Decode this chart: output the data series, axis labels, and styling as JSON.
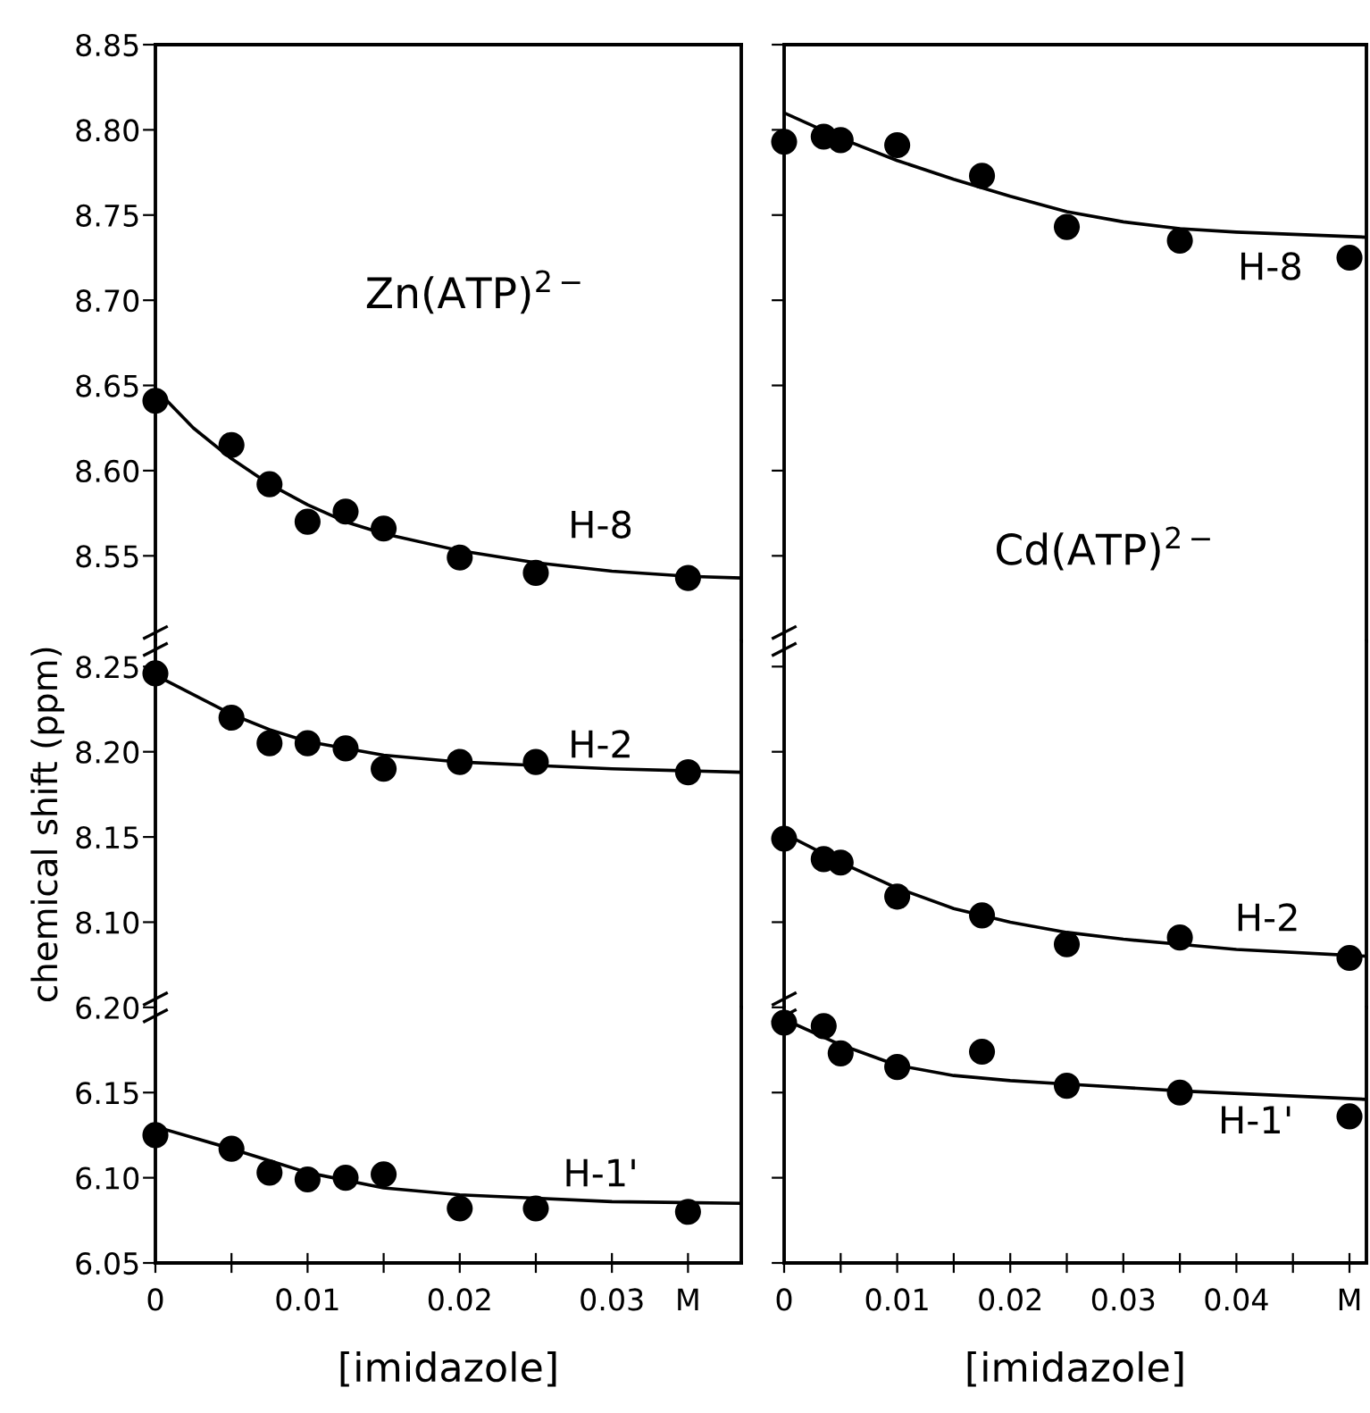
{
  "chart_data": [
    {
      "type": "scatter",
      "grid": false,
      "legend": false,
      "tick_labels": "y",
      "xlim": [
        0,
        0.0385
      ],
      "ylim": [
        8.5,
        8.85
      ],
      "yticks": [
        8.55,
        {
          "value": 8.6,
          "label": "8.60"
        },
        8.65,
        {
          "value": 8.7,
          "label": "8.70"
        },
        8.75,
        {
          "value": 8.8,
          "label": "8.80"
        },
        8.85
      ],
      "annotations": [
        "Zn(ATP)$^{2−}$",
        "H-8"
      ],
      "series": [
        {
          "marker": "circle",
          "color": "#000000",
          "x": [
            0,
            0.005,
            0.0075,
            0.01,
            0.0125,
            0.015,
            0.02,
            0.025,
            0.035
          ],
          "values": [
            8.641,
            8.615,
            8.592,
            8.57,
            8.576,
            8.566,
            8.549,
            8.54,
            8.537
          ]
        },
        {
          "type": "line",
          "color": "#000000",
          "x": [
            0,
            0.0025,
            0.005,
            0.0075,
            0.01,
            0.0125,
            0.015,
            0.02,
            0.025,
            0.03,
            0.035,
            0.0385
          ],
          "values": [
            8.648,
            8.625,
            8.607,
            8.592,
            8.58,
            8.57,
            8.563,
            8.553,
            8.546,
            8.541,
            8.538,
            8.537
          ]
        }
      ]
    },
    {
      "type": "scatter",
      "grid": false,
      "legend": false,
      "tick_labels": false,
      "xlim": [
        0,
        0.0515
      ],
      "ylim": [
        8.5,
        8.85
      ],
      "yticks": [
        8.55,
        8.6,
        8.65,
        8.7,
        8.75,
        8.8,
        8.85
      ],
      "annotations": [
        "Cd(ATP)$^{2−}$",
        "H-8"
      ],
      "series": [
        {
          "marker": "circle",
          "color": "#000000",
          "x": [
            0,
            0.0035,
            0.005,
            0.01,
            0.0175,
            0.025,
            0.035,
            0.05
          ],
          "values": [
            8.793,
            8.796,
            8.794,
            8.791,
            8.773,
            8.743,
            8.735,
            8.725
          ]
        },
        {
          "type": "line",
          "color": "#000000",
          "x": [
            0,
            0.005,
            0.01,
            0.015,
            0.02,
            0.025,
            0.03,
            0.035,
            0.04,
            0.0515
          ],
          "values": [
            8.81,
            8.795,
            8.782,
            8.771,
            8.761,
            8.752,
            8.746,
            8.742,
            8.74,
            8.737
          ]
        }
      ]
    },
    {
      "type": "scatter",
      "grid": false,
      "legend": false,
      "tick_labels": "y",
      "ylabel": "chemical shift (ppm)",
      "xlim": [
        0,
        0.0385
      ],
      "ylim": [
        8.05,
        8.265
      ],
      "yticks": [
        {
          "value": 8.1,
          "label": "8.10"
        },
        8.15,
        {
          "value": 8.2,
          "label": "8.20"
        },
        8.25
      ],
      "annotations": [
        "H-2"
      ],
      "series": [
        {
          "marker": "circle",
          "color": "#000000",
          "x": [
            0,
            0.005,
            0.0075,
            0.01,
            0.0125,
            0.015,
            0.02,
            0.025,
            0.035
          ],
          "values": [
            8.246,
            8.22,
            8.205,
            8.205,
            8.202,
            8.19,
            8.194,
            8.194,
            8.188
          ]
        },
        {
          "type": "line",
          "color": "#000000",
          "x": [
            0,
            0.005,
            0.0075,
            0.01,
            0.015,
            0.02,
            0.025,
            0.03,
            0.0385
          ],
          "values": [
            8.245,
            8.222,
            8.213,
            8.206,
            8.198,
            8.194,
            8.192,
            8.19,
            8.188
          ]
        }
      ]
    },
    {
      "type": "scatter",
      "grid": false,
      "legend": false,
      "tick_labels": false,
      "xlim": [
        0,
        0.0515
      ],
      "ylim": [
        8.05,
        8.265
      ],
      "yticks": [
        8.1,
        8.15,
        8.2,
        8.25
      ],
      "annotations": [
        "H-2"
      ],
      "series": [
        {
          "marker": "circle",
          "color": "#000000",
          "x": [
            0,
            0.0035,
            0.005,
            0.01,
            0.0175,
            0.025,
            0.035,
            0.05
          ],
          "values": [
            8.149,
            8.137,
            8.135,
            8.115,
            8.104,
            8.087,
            8.091,
            8.079
          ]
        },
        {
          "type": "line",
          "color": "#000000",
          "x": [
            0,
            0.005,
            0.01,
            0.015,
            0.02,
            0.025,
            0.03,
            0.035,
            0.04,
            0.0515
          ],
          "values": [
            8.152,
            8.135,
            8.12,
            8.108,
            8.1,
            8.094,
            8.09,
            8.087,
            8.084,
            8.08
          ]
        }
      ]
    },
    {
      "type": "scatter",
      "grid": false,
      "legend": false,
      "xlabel": "[imidazole]",
      "xlim": [
        0,
        0.0385
      ],
      "ylim": [
        6.05,
        6.2
      ],
      "xticks": [
        0,
        {
          "value": 0.005,
          "label": null
        },
        0.01,
        {
          "value": 0.015,
          "label": null
        },
        0.02,
        {
          "value": 0.025,
          "label": null
        },
        0.03,
        {
          "value": 0.035,
          "label": "M"
        }
      ],
      "yticks": [
        6.05,
        {
          "value": 6.1,
          "label": "6.10"
        },
        6.15,
        {
          "value": 6.2,
          "label": "6.20"
        }
      ],
      "annotations": [
        "H-1'"
      ],
      "series": [
        {
          "marker": "circle",
          "color": "#000000",
          "x": [
            0,
            0.005,
            0.0075,
            0.01,
            0.0125,
            0.015,
            0.02,
            0.025,
            0.035
          ],
          "values": [
            6.125,
            6.117,
            6.103,
            6.099,
            6.1,
            6.102,
            6.082,
            6.082,
            6.08
          ]
        },
        {
          "type": "line",
          "color": "#000000",
          "x": [
            0,
            0.005,
            0.0075,
            0.01,
            0.015,
            0.02,
            0.025,
            0.03,
            0.0385
          ],
          "values": [
            6.13,
            6.117,
            6.11,
            6.103,
            6.094,
            6.09,
            6.088,
            6.086,
            6.085
          ]
        }
      ]
    },
    {
      "type": "scatter",
      "grid": false,
      "legend": false,
      "tick_labels": "x",
      "xlabel": "[imidazole]",
      "xlim": [
        0,
        0.0515
      ],
      "ylim": [
        6.05,
        6.2
      ],
      "xticks": [
        0,
        {
          "value": 0.005,
          "label": null
        },
        0.01,
        {
          "value": 0.015,
          "label": null
        },
        0.02,
        {
          "value": 0.025,
          "label": null
        },
        0.03,
        {
          "value": 0.035,
          "label": null
        },
        0.04,
        {
          "value": 0.045,
          "label": null
        },
        {
          "value": 0.05,
          "label": "M"
        }
      ],
      "yticks": [
        6.05,
        6.1,
        6.15,
        6.2
      ],
      "annotations": [
        "H-1'"
      ],
      "series": [
        {
          "marker": "circle",
          "color": "#000000",
          "x": [
            0,
            0.0035,
            0.005,
            0.01,
            0.0175,
            0.025,
            0.035,
            0.05
          ],
          "values": [
            6.191,
            6.189,
            6.173,
            6.165,
            6.174,
            6.154,
            6.15,
            6.136
          ]
        },
        {
          "type": "line",
          "color": "#000000",
          "x": [
            0,
            0.005,
            0.01,
            0.015,
            0.02,
            0.025,
            0.035,
            0.0515
          ],
          "values": [
            6.193,
            6.178,
            6.166,
            6.16,
            6.157,
            6.155,
            6.151,
            6.146
          ]
        }
      ]
    }
  ]
}
